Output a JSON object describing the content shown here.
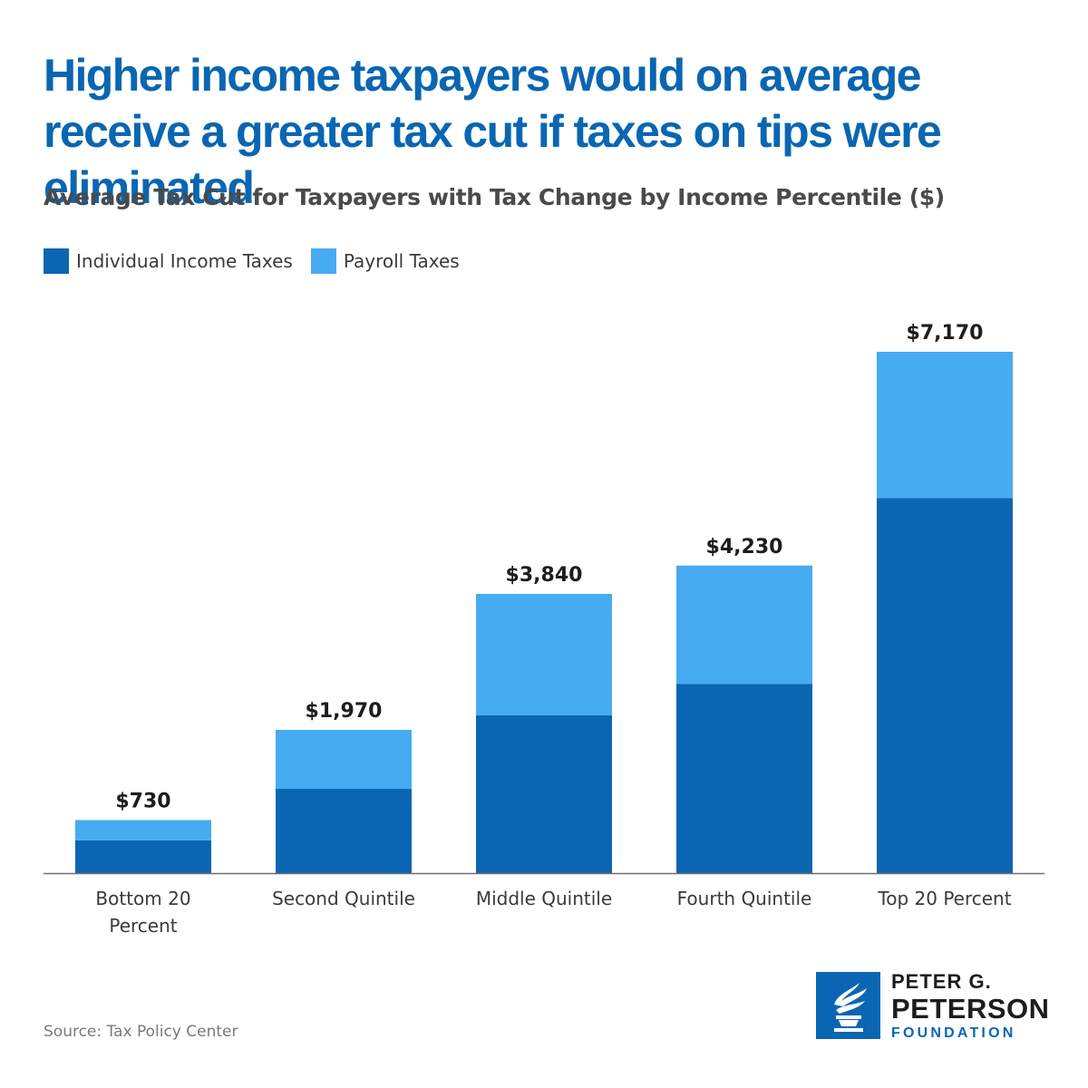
{
  "title": "Higher income taxpayers would on average receive a greater tax cut if taxes on tips were eliminated",
  "subtitle": "Average Tax Cut for Taxpayers with Tax Change by Income Percentile ($)",
  "legend": {
    "items": [
      {
        "label": "Individual Income Taxes",
        "color": "#0a66b2"
      },
      {
        "label": "Payroll Taxes",
        "color": "#47abf2"
      }
    ]
  },
  "chart_data": {
    "type": "bar",
    "stacked": true,
    "categories": [
      "Bottom 20 Percent",
      "Second Quintile",
      "Middle Quintile",
      "Fourth Quintile",
      "Top 20 Percent"
    ],
    "category_labels": [
      [
        "Bottom 20",
        "Percent"
      ],
      [
        "Second Quintile"
      ],
      [
        "Middle Quintile"
      ],
      [
        "Fourth Quintile"
      ],
      [
        "Top 20 Percent"
      ]
    ],
    "series": [
      {
        "name": "Individual Income Taxes",
        "color": "#0a66b2",
        "values": [
          450,
          1160,
          2170,
          2600,
          5160
        ]
      },
      {
        "name": "Payroll Taxes",
        "color": "#47abf2",
        "values": [
          280,
          810,
          1670,
          1630,
          2010
        ]
      }
    ],
    "totals": [
      730,
      1970,
      3840,
      4230,
      7170
    ],
    "total_labels": [
      "$730",
      "$1,970",
      "$3,840",
      "$4,230",
      "$7,170"
    ],
    "ylim": [
      0,
      7170
    ],
    "grid": false,
    "legend_position": "top-left"
  },
  "source": "Source: Tax Policy Center",
  "logo": {
    "line1": "PETER G.",
    "line2": "PETERSON",
    "line3": "FOUNDATION"
  }
}
